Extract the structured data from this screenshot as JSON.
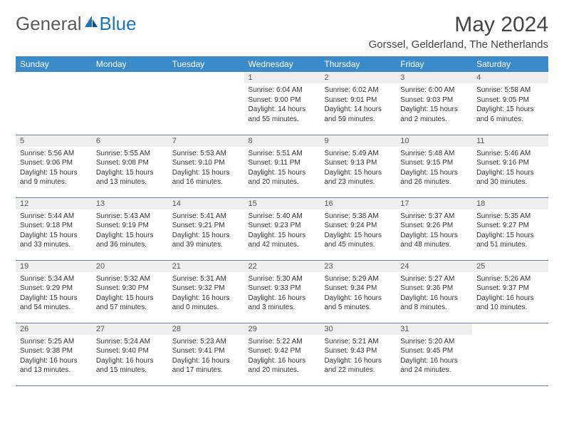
{
  "brand": {
    "part1": "General",
    "part2": "Blue"
  },
  "colors": {
    "header_bg": "#3b8bc9",
    "daynum_bg": "#eeeeee",
    "row_border": "#6a87a5",
    "logo_gray": "#5a5a5a",
    "logo_blue": "#1b75bb"
  },
  "title": "May 2024",
  "location": "Gorssel, Gelderland, The Netherlands",
  "day_headers": [
    "Sunday",
    "Monday",
    "Tuesday",
    "Wednesday",
    "Thursday",
    "Friday",
    "Saturday"
  ],
  "weeks": [
    [
      {
        "n": "",
        "lines": []
      },
      {
        "n": "",
        "lines": []
      },
      {
        "n": "",
        "lines": []
      },
      {
        "n": "1",
        "lines": [
          "Sunrise: 6:04 AM",
          "Sunset: 9:00 PM",
          "Daylight: 14 hours",
          "and 55 minutes."
        ]
      },
      {
        "n": "2",
        "lines": [
          "Sunrise: 6:02 AM",
          "Sunset: 9:01 PM",
          "Daylight: 14 hours",
          "and 59 minutes."
        ]
      },
      {
        "n": "3",
        "lines": [
          "Sunrise: 6:00 AM",
          "Sunset: 9:03 PM",
          "Daylight: 15 hours",
          "and 2 minutes."
        ]
      },
      {
        "n": "4",
        "lines": [
          "Sunrise: 5:58 AM",
          "Sunset: 9:05 PM",
          "Daylight: 15 hours",
          "and 6 minutes."
        ]
      }
    ],
    [
      {
        "n": "5",
        "lines": [
          "Sunrise: 5:56 AM",
          "Sunset: 9:06 PM",
          "Daylight: 15 hours",
          "and 9 minutes."
        ]
      },
      {
        "n": "6",
        "lines": [
          "Sunrise: 5:55 AM",
          "Sunset: 9:08 PM",
          "Daylight: 15 hours",
          "and 13 minutes."
        ]
      },
      {
        "n": "7",
        "lines": [
          "Sunrise: 5:53 AM",
          "Sunset: 9:10 PM",
          "Daylight: 15 hours",
          "and 16 minutes."
        ]
      },
      {
        "n": "8",
        "lines": [
          "Sunrise: 5:51 AM",
          "Sunset: 9:11 PM",
          "Daylight: 15 hours",
          "and 20 minutes."
        ]
      },
      {
        "n": "9",
        "lines": [
          "Sunrise: 5:49 AM",
          "Sunset: 9:13 PM",
          "Daylight: 15 hours",
          "and 23 minutes."
        ]
      },
      {
        "n": "10",
        "lines": [
          "Sunrise: 5:48 AM",
          "Sunset: 9:15 PM",
          "Daylight: 15 hours",
          "and 26 minutes."
        ]
      },
      {
        "n": "11",
        "lines": [
          "Sunrise: 5:46 AM",
          "Sunset: 9:16 PM",
          "Daylight: 15 hours",
          "and 30 minutes."
        ]
      }
    ],
    [
      {
        "n": "12",
        "lines": [
          "Sunrise: 5:44 AM",
          "Sunset: 9:18 PM",
          "Daylight: 15 hours",
          "and 33 minutes."
        ]
      },
      {
        "n": "13",
        "lines": [
          "Sunrise: 5:43 AM",
          "Sunset: 9:19 PM",
          "Daylight: 15 hours",
          "and 36 minutes."
        ]
      },
      {
        "n": "14",
        "lines": [
          "Sunrise: 5:41 AM",
          "Sunset: 9:21 PM",
          "Daylight: 15 hours",
          "and 39 minutes."
        ]
      },
      {
        "n": "15",
        "lines": [
          "Sunrise: 5:40 AM",
          "Sunset: 9:23 PM",
          "Daylight: 15 hours",
          "and 42 minutes."
        ]
      },
      {
        "n": "16",
        "lines": [
          "Sunrise: 5:38 AM",
          "Sunset: 9:24 PM",
          "Daylight: 15 hours",
          "and 45 minutes."
        ]
      },
      {
        "n": "17",
        "lines": [
          "Sunrise: 5:37 AM",
          "Sunset: 9:26 PM",
          "Daylight: 15 hours",
          "and 48 minutes."
        ]
      },
      {
        "n": "18",
        "lines": [
          "Sunrise: 5:35 AM",
          "Sunset: 9:27 PM",
          "Daylight: 15 hours",
          "and 51 minutes."
        ]
      }
    ],
    [
      {
        "n": "19",
        "lines": [
          "Sunrise: 5:34 AM",
          "Sunset: 9:29 PM",
          "Daylight: 15 hours",
          "and 54 minutes."
        ]
      },
      {
        "n": "20",
        "lines": [
          "Sunrise: 5:32 AM",
          "Sunset: 9:30 PM",
          "Daylight: 15 hours",
          "and 57 minutes."
        ]
      },
      {
        "n": "21",
        "lines": [
          "Sunrise: 5:31 AM",
          "Sunset: 9:32 PM",
          "Daylight: 16 hours",
          "and 0 minutes."
        ]
      },
      {
        "n": "22",
        "lines": [
          "Sunrise: 5:30 AM",
          "Sunset: 9:33 PM",
          "Daylight: 16 hours",
          "and 3 minutes."
        ]
      },
      {
        "n": "23",
        "lines": [
          "Sunrise: 5:29 AM",
          "Sunset: 9:34 PM",
          "Daylight: 16 hours",
          "and 5 minutes."
        ]
      },
      {
        "n": "24",
        "lines": [
          "Sunrise: 5:27 AM",
          "Sunset: 9:36 PM",
          "Daylight: 16 hours",
          "and 8 minutes."
        ]
      },
      {
        "n": "25",
        "lines": [
          "Sunrise: 5:26 AM",
          "Sunset: 9:37 PM",
          "Daylight: 16 hours",
          "and 10 minutes."
        ]
      }
    ],
    [
      {
        "n": "26",
        "lines": [
          "Sunrise: 5:25 AM",
          "Sunset: 9:38 PM",
          "Daylight: 16 hours",
          "and 13 minutes."
        ]
      },
      {
        "n": "27",
        "lines": [
          "Sunrise: 5:24 AM",
          "Sunset: 9:40 PM",
          "Daylight: 16 hours",
          "and 15 minutes."
        ]
      },
      {
        "n": "28",
        "lines": [
          "Sunrise: 5:23 AM",
          "Sunset: 9:41 PM",
          "Daylight: 16 hours",
          "and 17 minutes."
        ]
      },
      {
        "n": "29",
        "lines": [
          "Sunrise: 5:22 AM",
          "Sunset: 9:42 PM",
          "Daylight: 16 hours",
          "and 20 minutes."
        ]
      },
      {
        "n": "30",
        "lines": [
          "Sunrise: 5:21 AM",
          "Sunset: 9:43 PM",
          "Daylight: 16 hours",
          "and 22 minutes."
        ]
      },
      {
        "n": "31",
        "lines": [
          "Sunrise: 5:20 AM",
          "Sunset: 9:45 PM",
          "Daylight: 16 hours",
          "and 24 minutes."
        ]
      },
      {
        "n": "",
        "lines": []
      }
    ]
  ]
}
